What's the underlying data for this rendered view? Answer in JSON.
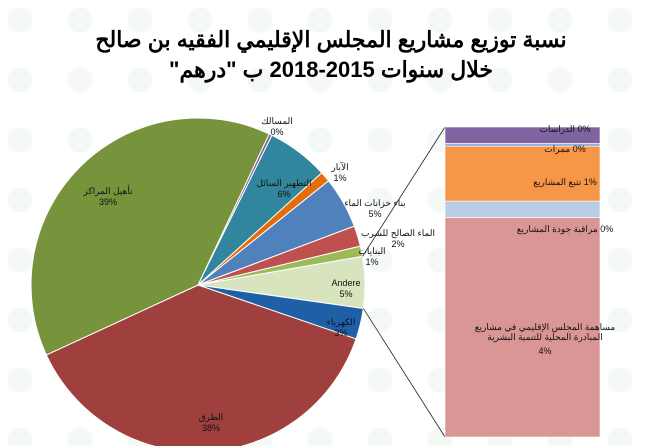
{
  "title_line1": "نسبة توزيع مشاريع المجلس الإقليمي الفقيه بن صالح",
  "title_line2": "خلال سنوات 2015-2018  ب \"درهم\"",
  "chart_data": [
    {
      "type": "pie",
      "slices": [
        {
          "label": "المسالك",
          "value_text": "0%",
          "value": 0.3,
          "color": "#8064a2"
        },
        {
          "label": "التطهير السائل",
          "value_text": "6%",
          "value": 6,
          "color": "#31859c"
        },
        {
          "label": "الآبار",
          "value_text": "1%",
          "value": 1,
          "color": "#e46c0a"
        },
        {
          "label": "بناء خزانات الماء",
          "value_text": "5%",
          "value": 5,
          "color": "#4f81bd"
        },
        {
          "label": "الماء الصالح للشرب",
          "value_text": "2%",
          "value": 2,
          "color": "#c0504d"
        },
        {
          "label": "البنايات",
          "value_text": "1%",
          "value": 1,
          "color": "#9bbb59"
        },
        {
          "label": "Andere",
          "value_text": "5%",
          "value": 5,
          "color": "#d7e4bd"
        },
        {
          "label": "الكهرباء",
          "value_text": "3%",
          "value": 3,
          "color": "#1f5fa8"
        },
        {
          "label": "الطرق",
          "value_text": "38%",
          "value": 38,
          "color": "#a0403e"
        },
        {
          "label": "تأهيل المراكز",
          "value_text": "39%",
          "value": 39,
          "color": "#77933c"
        }
      ]
    },
    {
      "type": "bar",
      "stacked": true,
      "segments": [
        {
          "label": "مساهمة المجلس الإقليمي في مشاريع المبادرة المحلية للتنمية البشرية",
          "value_text": "4%",
          "value": 4,
          "color": "#d99694"
        },
        {
          "label": "مراقبة جودة المشاريع",
          "value_text": "0%",
          "value": 0.3,
          "color": "#b9cde5"
        },
        {
          "label": "تتبع المشاريع",
          "value_text": "1%",
          "value": 1,
          "color": "#f79646"
        },
        {
          "label": "ممرات",
          "value_text": "0%",
          "value": 0.05,
          "color": "#8db3e2"
        },
        {
          "label": "الدراسات",
          "value_text": "0%",
          "value": 0.3,
          "color": "#8064a2"
        }
      ]
    }
  ]
}
